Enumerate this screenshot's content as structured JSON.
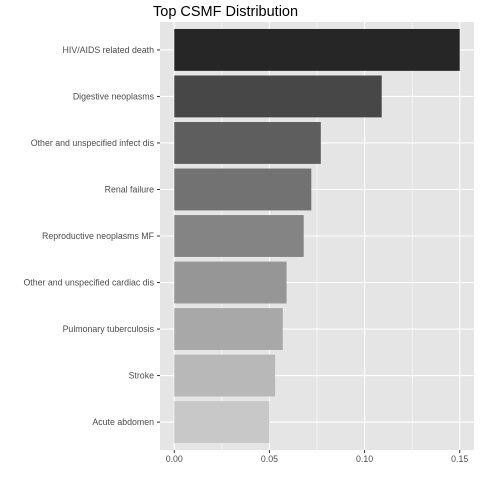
{
  "chart_data": {
    "type": "bar",
    "orientation": "horizontal",
    "title": "Top CSMF Distribution",
    "xlabel": "",
    "ylabel": "",
    "categories": [
      "HIV/AIDS related death",
      "Digestive neoplasms",
      "Other and unspecified infect dis",
      "Renal failure",
      "Reproductive neoplasms MF",
      "Other and unspecified cardiac dis",
      "Pulmonary tuberculosis",
      "Stroke",
      "Acute abdomen"
    ],
    "values": [
      0.15,
      0.109,
      0.077,
      0.072,
      0.068,
      0.059,
      0.057,
      0.053,
      0.05
    ],
    "bar_colors": [
      "#262626",
      "#474747",
      "#5e5e5e",
      "#727272",
      "#848484",
      "#969696",
      "#a8a8a8",
      "#b8b8b8",
      "#c8c8c8"
    ],
    "xlim": [
      -0.0075,
      0.1575
    ],
    "xticks": [
      0.0,
      0.05,
      0.1,
      0.15
    ],
    "xtick_labels": [
      "0.00",
      "0.05",
      "0.10",
      "0.15"
    ],
    "grid": true,
    "panel_background": "#e5e5e5",
    "grid_color": "#ffffff",
    "legend": "none"
  }
}
